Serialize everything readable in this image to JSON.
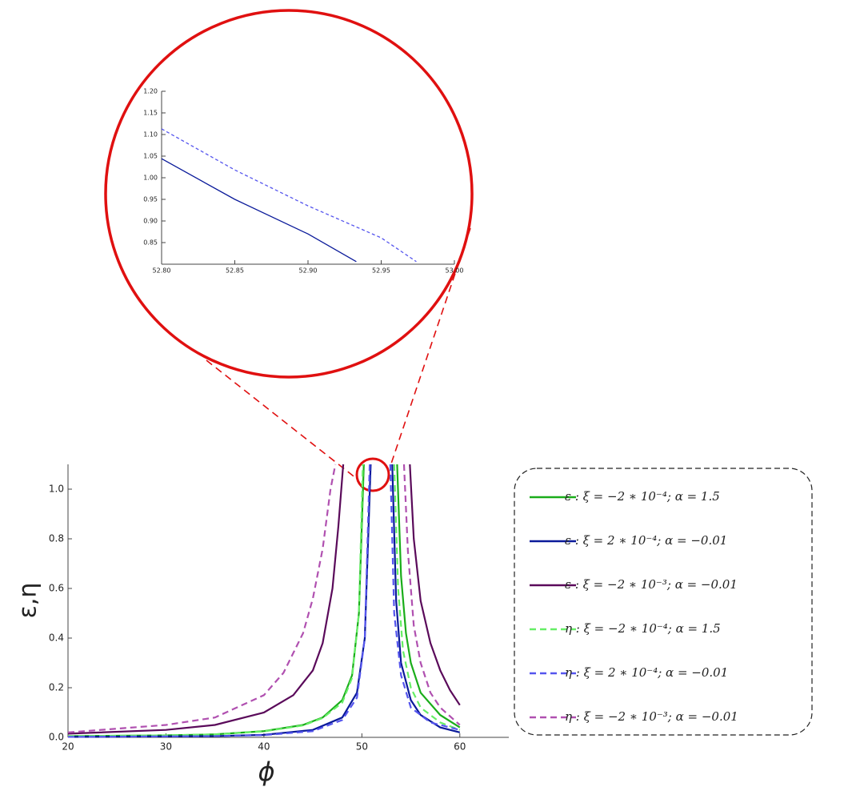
{
  "chart_data": [
    {
      "type": "line",
      "xlabel": "ϕ",
      "ylabel": "ε,η",
      "xlim": [
        20,
        65
      ],
      "ylim": [
        0,
        1.1
      ],
      "xticks": [
        20,
        30,
        40,
        50,
        60
      ],
      "yticks": [
        {
          "value": 0,
          "label": "0.0"
        },
        0.2,
        0.4,
        0.6,
        0.8,
        {
          "value": 1,
          "label": "1.0"
        }
      ],
      "legend": "right",
      "series": [
        {
          "name": "ε   :   ξ = −2 ∗ 10⁻⁴; α = 1.5",
          "color": "#1aad1a",
          "linestyle": "solid",
          "x": [
            20,
            30,
            35,
            40,
            44,
            46,
            48,
            49,
            49.7,
            50.2,
            52,
            53.6,
            54,
            54.5,
            55,
            56,
            58,
            60
          ],
          "values": [
            0.005,
            0.008,
            0.012,
            0.025,
            0.05,
            0.08,
            0.15,
            0.25,
            0.5,
            1.1,
            null,
            1.1,
            0.65,
            0.42,
            0.3,
            0.18,
            0.09,
            0.04
          ]
        },
        {
          "name": "ε   :   ξ = 2 ∗ 10⁻⁴; α = −0.01",
          "color": "#0a1a9a",
          "linestyle": "solid",
          "x": [
            20,
            35,
            40,
            45,
            48,
            49.5,
            50.3,
            50.9,
            52,
            53.1,
            53.5,
            54,
            55,
            56,
            58,
            60
          ],
          "values": [
            0.002,
            0.005,
            0.01,
            0.03,
            0.08,
            0.18,
            0.4,
            1.1,
            null,
            1.1,
            0.55,
            0.3,
            0.15,
            0.09,
            0.04,
            0.02
          ]
        },
        {
          "name": "ε   :   ξ = −2 ∗ 10⁻³; α = −0.01",
          "color": "#5a0a5a",
          "linestyle": "solid",
          "x": [
            20,
            30,
            35,
            40,
            43,
            45,
            46,
            47,
            47.6,
            48.1,
            51.5,
            54.9,
            55.3,
            56,
            57,
            58,
            59,
            60
          ],
          "values": [
            0.015,
            0.03,
            0.05,
            0.1,
            0.17,
            0.27,
            0.38,
            0.6,
            0.85,
            1.1,
            null,
            1.1,
            0.8,
            0.55,
            0.38,
            0.27,
            0.19,
            0.13
          ]
        },
        {
          "name": "η   :   ξ = −2 ∗ 10⁻⁴; α = 1.5",
          "color": "#66ee66",
          "linestyle": "dashed",
          "x": [
            20,
            30,
            35,
            40,
            44,
            46,
            48,
            49,
            49.7,
            50.1,
            52,
            53.3,
            53.7,
            54.2,
            55,
            56,
            58,
            60
          ],
          "values": [
            0.005,
            0.008,
            0.012,
            0.024,
            0.048,
            0.078,
            0.14,
            0.24,
            0.5,
            1.1,
            null,
            1.1,
            0.6,
            0.35,
            0.2,
            0.12,
            0.06,
            0.03
          ]
        },
        {
          "name": "η   :   ξ = 2 ∗ 10⁻⁴; α = −0.01",
          "color": "#5555ee",
          "linestyle": "dashed",
          "x": [
            20,
            35,
            40,
            45,
            48,
            49.5,
            50.3,
            50.8,
            52,
            52.9,
            53.3,
            54,
            55,
            57,
            60
          ],
          "values": [
            0.002,
            0.005,
            0.009,
            0.025,
            0.07,
            0.16,
            0.4,
            1.1,
            null,
            1.1,
            0.5,
            0.25,
            0.12,
            0.06,
            0.03
          ]
        },
        {
          "name": "η   :   ξ = −2 ∗ 10⁻³; α = −0.01",
          "color": "#b050b0",
          "linestyle": "dashed",
          "x": [
            20,
            30,
            35,
            40,
            42,
            44,
            45,
            46,
            46.8,
            47.3,
            51,
            54.3,
            54.7,
            55.3,
            56,
            57,
            58,
            60
          ],
          "values": [
            0.02,
            0.05,
            0.08,
            0.17,
            0.26,
            0.42,
            0.56,
            0.76,
            1.0,
            1.1,
            null,
            1.1,
            0.75,
            0.45,
            0.3,
            0.18,
            0.12,
            0.05
          ]
        }
      ]
    },
    {
      "type": "line",
      "xlim": [
        52.8,
        53.0
      ],
      "ylim": [
        0.8,
        1.2
      ],
      "xticks": [
        {
          "value": 52.8,
          "label": "52.80"
        },
        52.85,
        {
          "value": 52.9,
          "label": "52.90"
        },
        52.95,
        {
          "value": 53,
          "label": "53.00"
        }
      ],
      "yticks": [
        0.85,
        {
          "value": 0.9,
          "label": "0.90"
        },
        0.95,
        {
          "value": 1,
          "label": "1.00"
        },
        1.05,
        {
          "value": 1.1,
          "label": "1.10"
        },
        1.15,
        {
          "value": 1.2,
          "label": "1.20"
        }
      ],
      "series": [
        {
          "color": "#0a1a9a",
          "linestyle": "solid",
          "x": [
            52.8,
            52.85,
            52.9,
            52.933
          ],
          "values": [
            1.044,
            0.95,
            0.87,
            0.806
          ]
        },
        {
          "color": "#5555ee",
          "linestyle": "dashed",
          "x": [
            52.8,
            52.85,
            52.9,
            52.95,
            52.974
          ],
          "values": [
            1.113,
            1.018,
            0.935,
            0.861,
            0.806
          ]
        }
      ]
    }
  ]
}
